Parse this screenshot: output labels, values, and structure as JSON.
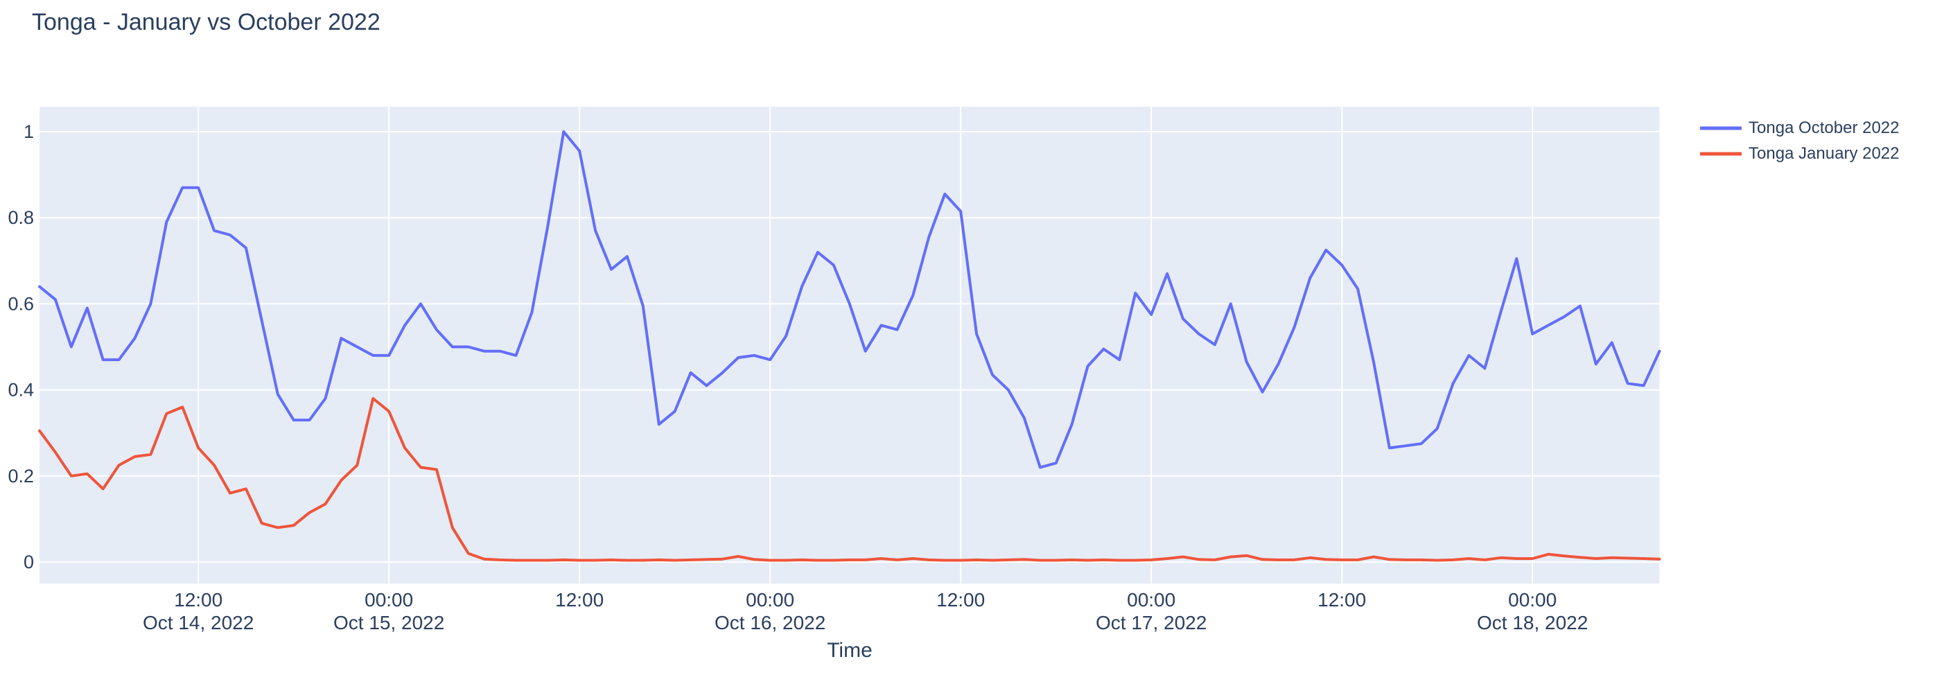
{
  "chart_data": {
    "type": "line",
    "title": "Tonga - January vs October 2022",
    "xlabel": "Time",
    "ylabel": "",
    "x_start": "2022-10-14 02:00",
    "x_end": "2022-10-18 08:00",
    "x_interval_hours": 1,
    "ylim": [
      -0.05,
      1.06
    ],
    "grid": true,
    "legend_position": "outside-top-right",
    "colors": {
      "plot_background": "#e5ecf6",
      "paper_background": "#ffffff",
      "grid": "#ffffff",
      "font": "#2a3f5f"
    },
    "y_ticks": [
      "0",
      "0.2",
      "0.4",
      "0.6",
      "0.8",
      "1"
    ],
    "x_ticks": [
      {
        "hour": 10,
        "time": "12:00",
        "date": "Oct 14, 2022"
      },
      {
        "hour": 22,
        "time": "00:00",
        "date": "Oct 15, 2022"
      },
      {
        "hour": 34,
        "time": "12:00",
        "date": ""
      },
      {
        "hour": 46,
        "time": "00:00",
        "date": "Oct 16, 2022"
      },
      {
        "hour": 58,
        "time": "12:00",
        "date": ""
      },
      {
        "hour": 70,
        "time": "00:00",
        "date": "Oct 17, 2022"
      },
      {
        "hour": 82,
        "time": "12:00",
        "date": ""
      },
      {
        "hour": 94,
        "time": "00:00",
        "date": "Oct 18, 2022"
      }
    ],
    "series": [
      {
        "name": "Tonga October 2022",
        "color": "#636efa",
        "values": [
          0.64,
          0.61,
          0.5,
          0.59,
          0.47,
          0.47,
          0.52,
          0.6,
          0.79,
          0.87,
          0.87,
          0.77,
          0.76,
          0.73,
          0.56,
          0.39,
          0.33,
          0.33,
          0.38,
          0.52,
          0.5,
          0.48,
          0.48,
          0.55,
          0.6,
          0.54,
          0.5,
          0.5,
          0.49,
          0.49,
          0.48,
          0.58,
          0.78,
          1.0,
          0.955,
          0.77,
          0.68,
          0.71,
          0.595,
          0.32,
          0.35,
          0.44,
          0.41,
          0.44,
          0.475,
          0.48,
          0.47,
          0.525,
          0.64,
          0.72,
          0.69,
          0.6,
          0.49,
          0.55,
          0.54,
          0.62,
          0.755,
          0.855,
          0.815,
          0.53,
          0.435,
          0.4,
          0.335,
          0.22,
          0.23,
          0.32,
          0.455,
          0.495,
          0.47,
          0.625,
          0.575,
          0.67,
          0.565,
          0.53,
          0.505,
          0.6,
          0.465,
          0.395,
          0.46,
          0.545,
          0.66,
          0.725,
          0.69,
          0.635,
          0.465,
          0.265,
          0.27,
          0.275,
          0.31,
          0.415,
          0.48,
          0.45,
          0.58,
          0.705,
          0.53,
          0.55,
          0.57,
          0.595,
          0.46,
          0.51,
          0.415,
          0.41,
          0.49
        ]
      },
      {
        "name": "Tonga January 2022",
        "color": "#ef553b",
        "values": [
          0.305,
          0.255,
          0.2,
          0.205,
          0.17,
          0.225,
          0.245,
          0.25,
          0.345,
          0.36,
          0.265,
          0.225,
          0.16,
          0.17,
          0.09,
          0.08,
          0.085,
          0.115,
          0.135,
          0.19,
          0.225,
          0.38,
          0.35,
          0.265,
          0.22,
          0.215,
          0.08,
          0.02,
          0.007,
          0.005,
          0.004,
          0.004,
          0.004,
          0.005,
          0.004,
          0.004,
          0.005,
          0.004,
          0.004,
          0.005,
          0.004,
          0.005,
          0.006,
          0.007,
          0.013,
          0.006,
          0.004,
          0.004,
          0.005,
          0.004,
          0.004,
          0.005,
          0.005,
          0.008,
          0.005,
          0.008,
          0.005,
          0.004,
          0.004,
          0.005,
          0.004,
          0.005,
          0.006,
          0.004,
          0.004,
          0.005,
          0.004,
          0.005,
          0.004,
          0.004,
          0.005,
          0.008,
          0.012,
          0.006,
          0.005,
          0.012,
          0.015,
          0.006,
          0.005,
          0.005,
          0.01,
          0.006,
          0.005,
          0.005,
          0.012,
          0.006,
          0.005,
          0.005,
          0.004,
          0.005,
          0.008,
          0.005,
          0.01,
          0.008,
          0.008,
          0.018,
          0.014,
          0.011,
          0.008,
          0.01,
          0.009,
          0.008,
          0.007
        ]
      }
    ]
  }
}
